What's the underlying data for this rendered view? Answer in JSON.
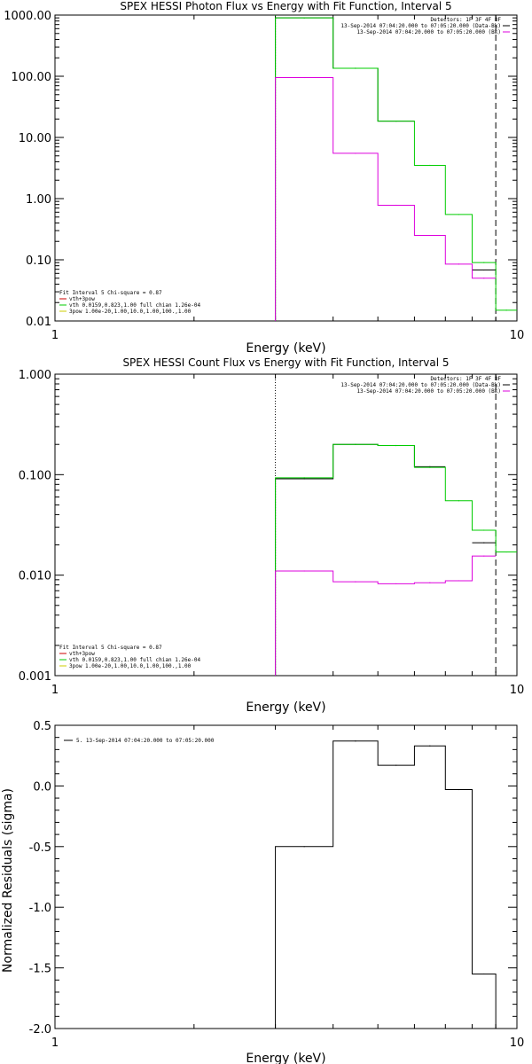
{
  "chart_data": [
    {
      "type": "line",
      "title": "SPEX HESSI Photon Flux vs Energy with Fit Function, Interval 5",
      "xlabel": "Energy (keV)",
      "ylabel": "",
      "xscale": "log",
      "yscale": "log",
      "xlim": [
        1,
        10
      ],
      "ylim": [
        0.01,
        1000
      ],
      "xticks": [
        "1",
        "10"
      ],
      "yticks": [
        {
          "v": 1000,
          "label": "1000.00"
        },
        {
          "v": 100,
          "label": "100.00"
        },
        {
          "v": 10,
          "label": "10.00"
        },
        {
          "v": 1,
          "label": "1.00"
        },
        {
          "v": 0.1,
          "label": "0.10"
        },
        {
          "v": 0.01,
          "label": "0.01"
        }
      ],
      "edges": [
        3,
        4,
        5,
        6,
        7,
        8,
        9,
        10
      ],
      "series": [
        {
          "label": "13-Sep-2014 07:04:20.000 to 07:05:20.000 (Data-Bk)",
          "color": "#000000",
          "values": [
            900,
            135,
            18.5,
            null,
            null,
            0.068,
            null
          ]
        },
        {
          "label": "vth+3pow",
          "color": "#00cc00",
          "values": [
            900,
            135,
            18.5,
            3.5,
            0.55,
            0.09,
            0.015
          ]
        },
        {
          "label": "13-Sep-2014 07:04:20.000 to 07:05:20.000 (Bk)",
          "color": "#dd00dd",
          "values": [
            95,
            5.5,
            0.78,
            0.25,
            0.085,
            0.05,
            null
          ]
        }
      ],
      "vlines": [
        {
          "x": 3,
          "style": "dotted",
          "color": "#009900"
        },
        {
          "x": 9,
          "style": "dashed",
          "color": "#000000"
        }
      ],
      "legend_top": [
        "Detectors: 1F 3F 4F 8F",
        "13-Sep-2014 07:04:20.000 to 07:05:20.000 (Data-Bk)",
        "13-Sep-2014 07:04:20.000 to 07:05:20.000 (Bk)"
      ],
      "legend_top_colors": [
        "",
        "#000000",
        "#dd00dd"
      ],
      "legend_bottom": [
        "Fit Interval 5   Chi-square = 0.87",
        "vth+3pow",
        "vth 0.0159,0.823,1.00  full chian 1.26e-04",
        "3pow 1.00e-20,1.00,10.0,1.00,100.,1.00"
      ],
      "legend_bottom_colors": [
        "",
        "#cc0000",
        "#00cc00",
        "#cccc00"
      ]
    },
    {
      "type": "line",
      "title": "SPEX HESSI Count Flux vs Energy with Fit Function, Interval 5",
      "xlabel": "Energy (keV)",
      "ylabel": "",
      "xscale": "log",
      "yscale": "log",
      "xlim": [
        1,
        10
      ],
      "ylim": [
        0.001,
        1
      ],
      "xticks": [
        "1",
        "10"
      ],
      "yticks": [
        {
          "v": 1,
          "label": "1.000"
        },
        {
          "v": 0.1,
          "label": "0.100"
        },
        {
          "v": 0.01,
          "label": "0.010"
        },
        {
          "v": 0.001,
          "label": "0.001"
        }
      ],
      "edges": [
        3,
        4,
        5,
        6,
        7,
        8,
        9,
        10
      ],
      "series": [
        {
          "label": "13-Sep-2014 07:04:20.000 to 07:05:20.000 (Data-Bk)",
          "color": "#000000",
          "values": [
            0.091,
            0.2,
            0.195,
            0.12,
            null,
            0.021,
            null
          ]
        },
        {
          "label": "vth+3pow",
          "color": "#00cc00",
          "values": [
            0.093,
            0.2,
            0.195,
            0.118,
            0.055,
            0.028,
            0.017
          ]
        },
        {
          "label": "13-Sep-2014 07:04:20.000 to 07:05:20.000 (Bk)",
          "color": "#dd00dd",
          "values": [
            0.011,
            0.0086,
            0.0082,
            0.0084,
            0.0088,
            0.0155,
            null
          ]
        }
      ],
      "vlines": [
        {
          "x": 3,
          "style": "dotted",
          "color": "#000000"
        },
        {
          "x": 9,
          "style": "dashed",
          "color": "#000000"
        }
      ],
      "legend_top": [
        "Detectors: 1F 3F 4F 8F",
        "13-Sep-2014 07:04:20.000 to 07:05:20.000 (Data-Bk)",
        "13-Sep-2014 07:04:20.000 to 07:05:20.000 (Bk)"
      ],
      "legend_top_colors": [
        "",
        "#000000",
        "#dd00dd"
      ],
      "legend_bottom": [
        "Fit Interval 5   Chi-square = 0.87",
        "vth+3pow",
        "vth 0.0159,0.823,1.00  full chian 1.26e-04",
        "3pow 1.00e-20,1.00,10.0,1.00,100.,1.00"
      ],
      "legend_bottom_colors": [
        "",
        "#cc0000",
        "#00cc00",
        "#cccc00"
      ]
    },
    {
      "type": "line",
      "title": "",
      "xlabel": "Energy (keV)",
      "ylabel": "Normalized Residuals (sigma)",
      "xscale": "log",
      "yscale": "linear",
      "xlim": [
        1,
        10
      ],
      "ylim": [
        -2.0,
        0.5
      ],
      "xticks": [
        "1",
        "10"
      ],
      "yticks": [
        {
          "v": 0.5,
          "label": "0.5"
        },
        {
          "v": 0.0,
          "label": "0.0"
        },
        {
          "v": -0.5,
          "label": "-0.5"
        },
        {
          "v": -1.0,
          "label": "-1.0"
        },
        {
          "v": -1.5,
          "label": "-1.5"
        },
        {
          "v": -2.0,
          "label": "-2.0"
        }
      ],
      "edges": [
        3,
        4,
        5,
        6,
        7,
        8,
        9
      ],
      "series": [
        {
          "label": "5. 13-Sep-2014 07:04:20.000 to 07:05:20.000",
          "color": "#000000",
          "values": [
            -0.5,
            0.37,
            0.17,
            0.33,
            -0.03,
            -1.55
          ]
        }
      ],
      "vlines": [],
      "legend_top": [
        "5. 13-Sep-2014 07:04:20.000 to 07:05:20.000"
      ],
      "legend_top_colors": [
        "#000000"
      ],
      "legend_bottom": [],
      "legend_bottom_colors": []
    }
  ]
}
